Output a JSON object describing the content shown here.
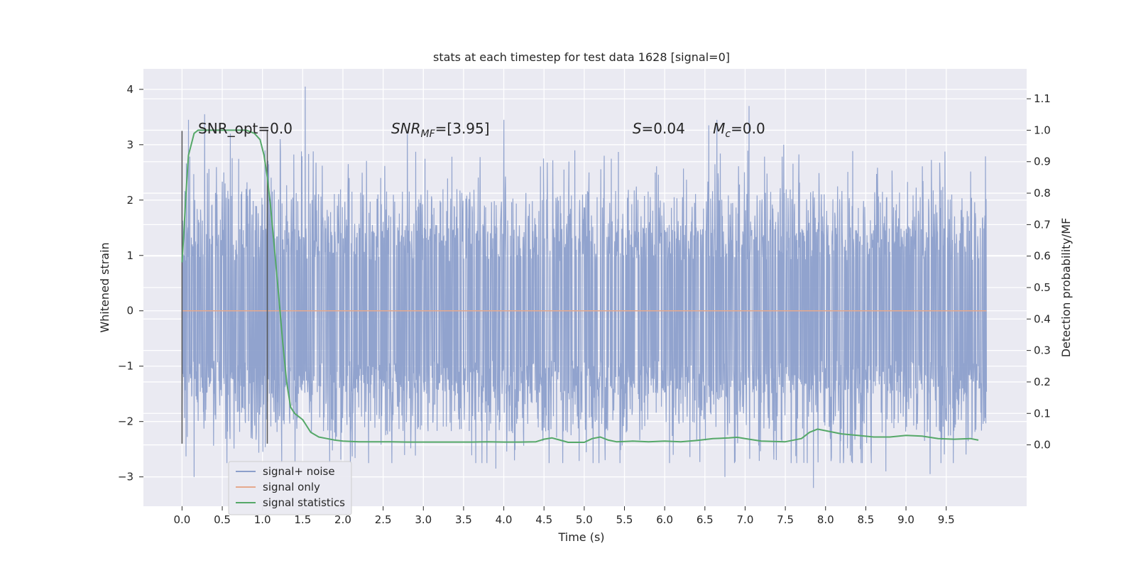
{
  "chart_data": {
    "type": "line",
    "title": "stats at each timestep for test data 1628 [signal=0]",
    "xlabel": "Time (s)",
    "ylabel": "Whitened strain",
    "y2label": "Detection probability/MF",
    "xlim": [
      -0.48,
      10.5
    ],
    "ylim": [
      -3.53,
      4.37
    ],
    "y2lim": [
      -0.195,
      1.195
    ],
    "xticks": [
      "0.0",
      "0.5",
      "1.0",
      "1.5",
      "2.0",
      "2.5",
      "3.0",
      "3.5",
      "4.0",
      "4.5",
      "5.0",
      "5.5",
      "6.0",
      "6.5",
      "7.0",
      "7.5",
      "8.0",
      "8.5",
      "9.0",
      "9.5"
    ],
    "xtick_values": [
      0,
      0.5,
      1,
      1.5,
      2,
      2.5,
      3,
      3.5,
      4,
      4.5,
      5,
      5.5,
      6,
      6.5,
      7,
      7.5,
      8,
      8.5,
      9,
      9.5
    ],
    "yticks": [
      "−3",
      "−2",
      "−1",
      "0",
      "1",
      "2",
      "3",
      "4"
    ],
    "ytick_values": [
      -3,
      -2,
      -1,
      0,
      1,
      2,
      3,
      4
    ],
    "y2ticks": [
      "0.0",
      "0.1",
      "0.2",
      "0.3",
      "0.4",
      "0.5",
      "0.6",
      "0.7",
      "0.8",
      "0.9",
      "1.0",
      "1.1"
    ],
    "y2tick_values": [
      0,
      0.1,
      0.2,
      0.3,
      0.4,
      0.5,
      0.6,
      0.7,
      0.8,
      0.9,
      1.0,
      1.1
    ],
    "grid": true,
    "legend_placement": "lower-left",
    "series": [
      {
        "name": "signal+ noise",
        "axis": "left",
        "color": "#8c9fcb",
        "x_range": [
          0,
          10
        ],
        "typical_upper": 1.5,
        "typical_lower": -1.5,
        "peaks": [
          {
            "x": 0.08,
            "y": 3.45
          },
          {
            "x": 0.28,
            "y": 3.55
          },
          {
            "x": 0.6,
            "y": 3.2
          },
          {
            "x": 1.53,
            "y": 4.05
          },
          {
            "x": 1.22,
            "y": 3.1
          },
          {
            "x": 2.8,
            "y": 3.2
          },
          {
            "x": 4.0,
            "y": 3.45
          },
          {
            "x": 5.25,
            "y": 2.8
          },
          {
            "x": 6.55,
            "y": 3.35
          },
          {
            "x": 6.65,
            "y": 3.45
          },
          {
            "x": 7.05,
            "y": 3.7
          },
          {
            "x": 7.48,
            "y": 3.0
          },
          {
            "x": 0.15,
            "y": -3.0
          },
          {
            "x": 3.9,
            "y": -2.85
          },
          {
            "x": 7.85,
            "y": -3.2
          },
          {
            "x": 8.75,
            "y": -2.9
          },
          {
            "x": 9.3,
            "y": -2.95
          },
          {
            "x": 6.75,
            "y": -3.0
          }
        ]
      },
      {
        "name": "signal only",
        "axis": "left",
        "color": "#e5a98d",
        "x": [
          0,
          10
        ],
        "y": [
          0,
          0
        ]
      },
      {
        "name": "signal statistics",
        "axis": "right",
        "color": "#55a868",
        "x": [
          0,
          0.02,
          0.05,
          0.08,
          0.12,
          0.15,
          0.2,
          0.3,
          0.4,
          0.5,
          0.6,
          0.7,
          0.8,
          0.9,
          0.97,
          1.02,
          1.06,
          1.1,
          1.15,
          1.2,
          1.25,
          1.3,
          1.35,
          1.4,
          1.45,
          1.5,
          1.55,
          1.6,
          1.7,
          1.8,
          1.9,
          2.0,
          2.2,
          2.4,
          2.6,
          2.8,
          3.0,
          3.2,
          3.4,
          3.6,
          3.8,
          4.0,
          4.2,
          4.4,
          4.5,
          4.6,
          4.7,
          4.8,
          5.0,
          5.1,
          5.2,
          5.3,
          5.4,
          5.6,
          5.8,
          6.0,
          6.2,
          6.4,
          6.6,
          6.8,
          6.9,
          7.0,
          7.2,
          7.5,
          7.7,
          7.8,
          7.9,
          8.0,
          8.2,
          8.4,
          8.6,
          8.8,
          9.0,
          9.2,
          9.4,
          9.6,
          9.8,
          9.9
        ],
        "y": [
          0.58,
          0.66,
          0.8,
          0.92,
          0.96,
          0.99,
          1.0,
          1.0,
          1.0,
          1.0,
          1.0,
          1.0,
          1.0,
          0.99,
          0.97,
          0.92,
          0.85,
          0.76,
          0.62,
          0.48,
          0.33,
          0.2,
          0.12,
          0.1,
          0.09,
          0.08,
          0.06,
          0.04,
          0.025,
          0.02,
          0.015,
          0.012,
          0.01,
          0.01,
          0.01,
          0.009,
          0.009,
          0.009,
          0.009,
          0.009,
          0.01,
          0.009,
          0.009,
          0.01,
          0.018,
          0.022,
          0.015,
          0.008,
          0.008,
          0.02,
          0.025,
          0.015,
          0.01,
          0.012,
          0.01,
          0.012,
          0.01,
          0.014,
          0.02,
          0.022,
          0.024,
          0.02,
          0.012,
          0.01,
          0.02,
          0.04,
          0.05,
          0.045,
          0.035,
          0.03,
          0.025,
          0.025,
          0.03,
          0.028,
          0.02,
          0.018,
          0.02,
          0.015
        ]
      }
    ],
    "vertical_markers": [
      {
        "x": 0.0,
        "y_range": [
          -2.4,
          3.25
        ],
        "color": "#555555"
      },
      {
        "x": 1.06,
        "y_range": [
          -2.4,
          3.25
        ],
        "color": "#555555"
      }
    ],
    "annotations": [
      {
        "id": "snr-opt",
        "text": "SNR_opt=0.0",
        "x": 0.2,
        "y": 3.2
      },
      {
        "id": "snr-mf",
        "text": "=[3.95]",
        "label_main": "SNR",
        "label_sub": "MF",
        "x": 2.6,
        "y": 3.2
      },
      {
        "id": "s-stat",
        "text": "=0.04",
        "label_main": "S",
        "x": 5.6,
        "y": 3.2
      },
      {
        "id": "mc",
        "text": "=0.0",
        "label_main": "M",
        "label_sub": "c",
        "x": 6.6,
        "y": 3.2
      }
    ]
  }
}
